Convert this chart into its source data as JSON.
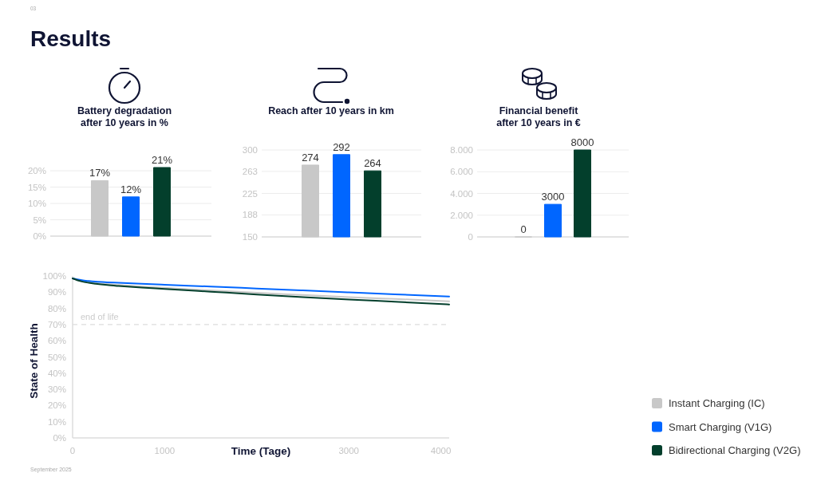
{
  "chart_data": [
    {
      "type": "other",
      "title": "Results",
      "annotations": [
        "03",
        "September 2025"
      ]
    },
    {
      "type": "bar",
      "title": "Battery degradation\nafter 10 years in %",
      "categories": [
        null,
        null,
        null
      ],
      "values": [
        17,
        12,
        21
      ],
      "colors": [
        "#c8c8c8",
        "#0066ff",
        "#033f2c"
      ],
      "value_labels": [
        "17%",
        "12%",
        "21%"
      ],
      "ylim": [
        0,
        21
      ],
      "yticks": [
        {
          "value": 0,
          "label": "0%"
        },
        {
          "value": 5,
          "label": "5%"
        },
        {
          "value": 10,
          "label": "10%"
        },
        {
          "value": 15,
          "label": "15%"
        },
        {
          "value": 20,
          "label": "20%"
        }
      ],
      "grid": "y"
    },
    {
      "type": "bar",
      "title": "Reach after 10 years in km",
      "categories": [
        null,
        null,
        null
      ],
      "values": [
        274,
        292,
        264
      ],
      "colors": [
        "#c8c8c8",
        "#0066ff",
        "#033f2c"
      ],
      "data_labels": true,
      "ylim": [
        150,
        300
      ],
      "yticks": [
        150,
        188,
        225,
        263,
        300
      ],
      "grid": "y"
    },
    {
      "type": "bar",
      "title": "Financial benefit\nafter 10 years in €",
      "categories": [
        null,
        null,
        null
      ],
      "values": [
        0,
        3000,
        8000
      ],
      "colors": [
        "#c8c8c8",
        "#0066ff",
        "#033f2c"
      ],
      "data_labels": true,
      "ylim": [
        0,
        8000
      ],
      "yticks": [
        0,
        {
          "value": 2000,
          "label": "2.000"
        },
        {
          "value": 4000,
          "label": "4.000"
        },
        {
          "value": 6000,
          "label": "6.000"
        },
        {
          "value": 8000,
          "label": "8.000"
        }
      ],
      "grid": "y"
    },
    {
      "type": "line",
      "xlabel": "Time (Tage)",
      "ylabel": "State of Health",
      "x": [
        0,
        50,
        100,
        175,
        250,
        375,
        500,
        750,
        1000,
        1500,
        2000,
        2500,
        3000,
        3500,
        4090
      ],
      "series": [
        {
          "name": "Instant Charging (IC)",
          "color": "#c8c8c8",
          "values": [
            98.5,
            97.6,
            96.9,
            96.2,
            95.6,
            94.9,
            94.4,
            93.5,
            92.7,
            91.1,
            89.6,
            88.3,
            87.0,
            85.8,
            84.4
          ]
        },
        {
          "name": "Smart Charging (V1G)",
          "color": "#0066ff",
          "values": [
            98.5,
            97.9,
            97.4,
            96.9,
            96.5,
            96.1,
            95.8,
            95.2,
            94.6,
            93.5,
            92.3,
            91.1,
            89.9,
            88.7,
            87.3
          ]
        },
        {
          "name": "Bidirectional Charging (V2G)",
          "color": "#033f2c",
          "values": [
            98.5,
            97.4,
            96.6,
            95.8,
            95.2,
            94.4,
            93.8,
            92.8,
            92.0,
            90.3,
            88.6,
            87.0,
            85.5,
            84.1,
            82.4
          ]
        }
      ],
      "xlim": [
        0,
        4090
      ],
      "ylim": [
        0,
        100
      ],
      "xticks": [
        0,
        1000,
        3000,
        4000
      ],
      "yticks": [
        {
          "value": 0,
          "label": "0%"
        },
        {
          "value": 10,
          "label": "10%"
        },
        {
          "value": 20,
          "label": "20%"
        },
        {
          "value": 30,
          "label": "30%"
        },
        {
          "value": 40,
          "label": "40%"
        },
        {
          "value": 50,
          "label": "50%"
        },
        {
          "value": 60,
          "label": "60%"
        },
        {
          "value": 70,
          "label": "70%"
        },
        {
          "value": 80,
          "label": "80%"
        },
        {
          "value": 90,
          "label": "90%"
        },
        {
          "value": 100,
          "label": "100%"
        }
      ],
      "ref_lines": [
        {
          "axis": "y",
          "value": 70,
          "label": "end of life",
          "color": "#dddddd",
          "line_style": "dashed"
        }
      ],
      "legend": "bottom right"
    }
  ]
}
